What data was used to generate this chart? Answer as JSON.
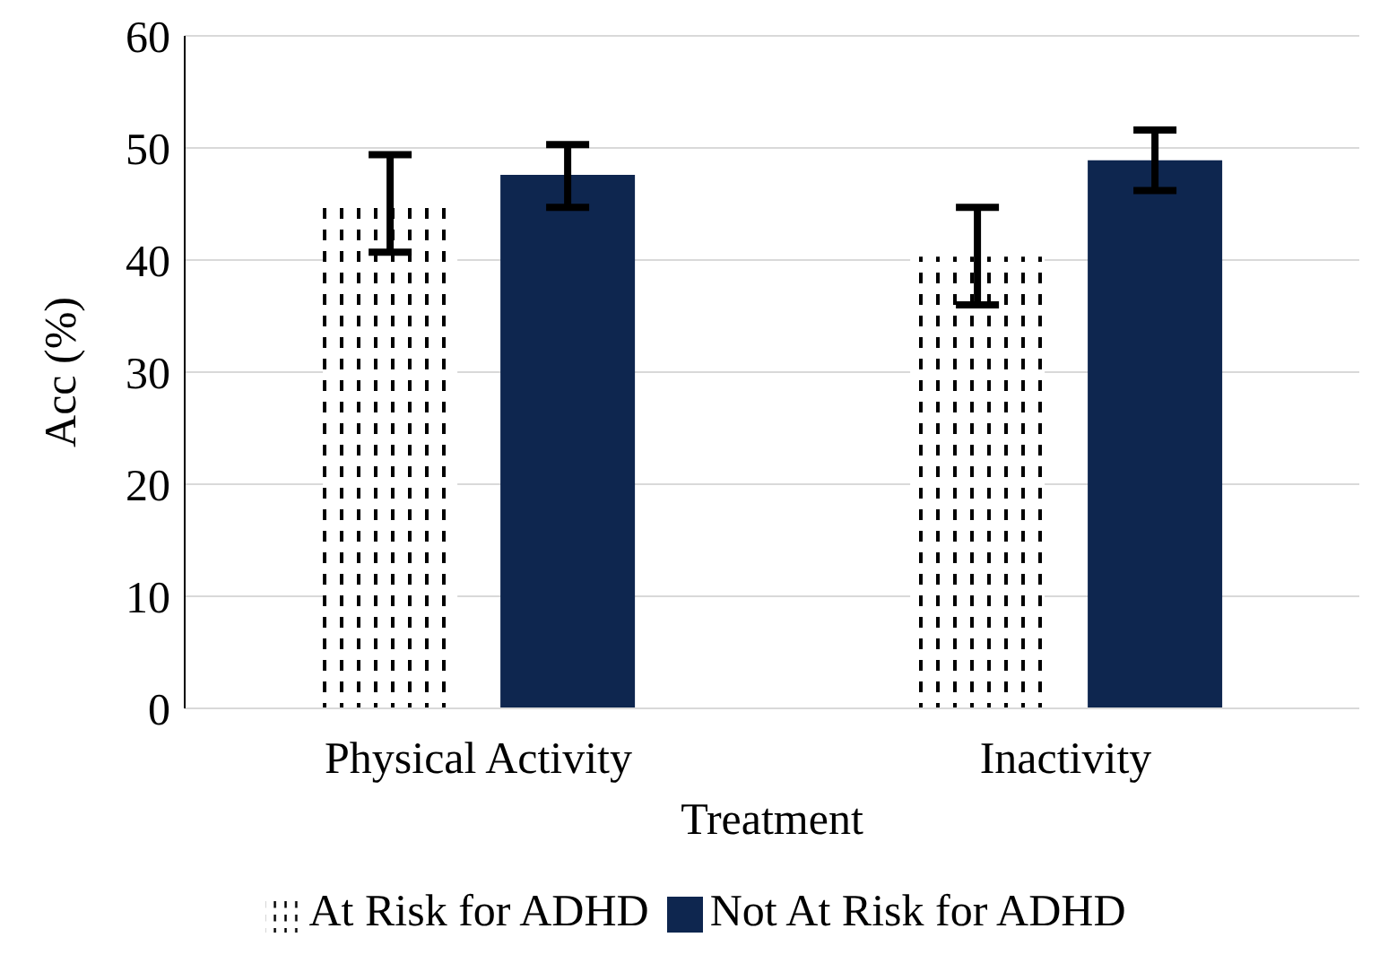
{
  "chart_data": {
    "type": "bar",
    "categories": [
      "Physical Activity",
      "Inactivity"
    ],
    "series": [
      {
        "name": "At Risk for ADHD",
        "color": "#000000",
        "values": [
          44.7,
          40.3
        ],
        "errors": [
          [
            40.7,
            49.4
          ],
          [
            36.0,
            44.7
          ]
        ]
      },
      {
        "name": "Not At Risk for ADHD",
        "color": "#0e264f",
        "values": [
          47.6,
          48.9
        ],
        "errors": [
          [
            44.7,
            50.3
          ],
          [
            46.2,
            51.6
          ]
        ]
      }
    ],
    "xlabel": "Treatment",
    "ylabel": "Acc (%)",
    "ylim": [
      0,
      60
    ],
    "yticks": [
      0,
      10,
      20,
      30,
      40,
      50,
      60
    ],
    "grid": "y",
    "legend": "bottom"
  }
}
